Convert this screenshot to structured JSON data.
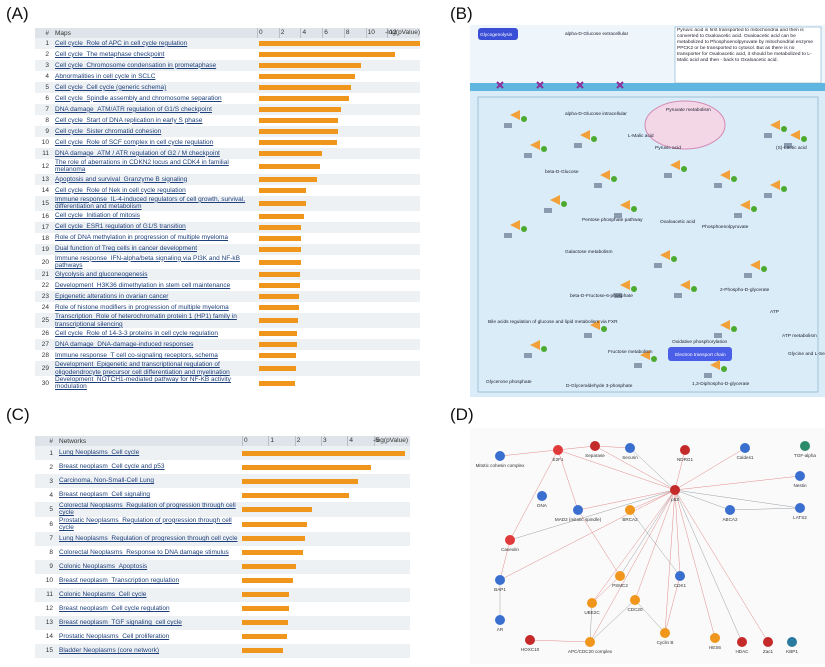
{
  "chart_data": [
    {
      "type": "bar",
      "orientation": "horizontal",
      "panel_label": "(A)",
      "column_headers": [
        "#",
        "Maps"
      ],
      "value_axis_label": "-log(pValue)",
      "row_numbers": [
        1,
        2,
        3,
        4,
        5,
        6,
        7,
        8,
        9,
        10,
        11,
        12,
        13,
        14,
        15,
        16,
        17,
        18,
        19,
        20,
        21,
        22,
        23,
        24,
        25,
        26,
        27,
        28,
        29,
        30
      ],
      "categories": [
        "Cell cycle_Role of APC in cell cycle regulation",
        "Cell cycle_The metaphase checkpoint",
        "Cell cycle_Chromosome condensation in prometaphase",
        "Abnormalities in cell cycle in SCLC",
        "Cell cycle_Cell cycle (generic schema)",
        "Cell cycle_Spindle assembly and chromosome separation",
        "DNA damage_ATM/ATR regulation of G1/S checkpoint",
        "Cell cycle_Start of DNA replication in early S phase",
        "Cell cycle_Sister chromatid cohesion",
        "Cell cycle_Role of SCF complex in cell cycle regulation",
        "DNA damage_ATM / ATR regulation of G2 / M checkpoint",
        "The role of aberrations in CDKN2 locus and CDK4 in familial melanoma",
        "Apoptosis and survival_Granzyme B signaling",
        "Cell cycle_Role of Nek in cell cycle regulation",
        "Immune response_IL-4-induced regulators of cell growth, survival, differentiation and metabolism",
        "Cell cycle_Initiation of mitosis",
        "Cell cycle_ESR1 regulation of G1/S transition",
        "Role of DNA methylation in progression of multiple myeloma",
        "Dual function of Treg cells in cancer development",
        "Immune response_IFN-alpha/beta signaling via PI3K and NF-kB pathways",
        "Glycolysis and gluconeogenesis",
        "Development_H3K36 dimethylation in stem cell maintenance",
        "Epigenetic alterations in ovarian cancer",
        "Role of histone modifiers in progression of multiple myeloma",
        "Transcription_Role of heterochromatin protein 1 (HP1) family in transcriptional silencing",
        "Cell cycle_Role of 14-3-3 proteins in cell cycle regulation",
        "DNA damage_DNA-damage-induced responses",
        "Immune response_T cell co-signaling receptors, schema",
        "Development_Epigenetic and transcriptional regulation of oligodendrocyte precursor cell differentiation and myelination",
        "Development_NOTCH1-mediated pathway for NF-KB activity modulation"
      ],
      "values": [
        14.8,
        12.5,
        9.4,
        8.8,
        8.5,
        8.3,
        7.5,
        7.3,
        7.3,
        7.2,
        5.8,
        5.6,
        5.3,
        4.3,
        4.3,
        4.1,
        3.9,
        3.9,
        3.9,
        3.9,
        3.8,
        3.8,
        3.7,
        3.7,
        3.6,
        3.5,
        3.5,
        3.4,
        3.4,
        3.3
      ],
      "color": "#f0961c",
      "xlim": [
        0,
        15
      ],
      "xticks": [
        0,
        2,
        4,
        6,
        8,
        10,
        12
      ]
    },
    {
      "type": "bar",
      "orientation": "horizontal",
      "panel_label": "(C)",
      "column_headers": [
        "#",
        "Networks"
      ],
      "value_axis_label": "-log(pValue)",
      "row_numbers": [
        1,
        2,
        3,
        4,
        5,
        6,
        7,
        8,
        9,
        10,
        11,
        12,
        13,
        14,
        15
      ],
      "categories": [
        "Lung Neoplasms_Cell cycle",
        "Breast neoplasm_Cell cycle and p53",
        "Carcinoma, Non-Small-Cell Lung",
        "Breast neoplasm_Cell signaling",
        "Colorectal Neoplasms_Regulation of progression through cell cycle",
        "Prostatic Neoplasms_Regulation of progression through cell cycle",
        "Lung Neoplasms_Regulation of progression through cell cycle",
        "Colorectal Neoplasms_Response to DNA damage stimulus",
        "Colonic Neoplasms_Apoptosis",
        "Breast neoplasm_Transcription regulation",
        "Colonic Neoplasms_Cell cycle",
        "Breast neoplasm_Cell cycle regulation",
        "Breast neoplasm_TGF signaling_cell cycle",
        "Prostatic Neoplasms_Cell proliferation",
        "Bladder Neoplasms (core network)"
      ],
      "values": [
        6.2,
        4.9,
        4.4,
        4.05,
        2.65,
        2.45,
        2.4,
        2.3,
        2.05,
        1.95,
        1.8,
        1.8,
        1.75,
        1.7,
        1.55
      ],
      "color": "#f0961c",
      "xlim": [
        0,
        6.3
      ],
      "xticks": [
        0,
        1,
        2,
        3,
        4,
        5
      ]
    }
  ],
  "pathway_map": {
    "panel_label": "(B)",
    "labels": [
      "Glycogenolysis",
      "alpha-D-Glucose extracellular",
      "Pyruvate metabolism",
      "alpha-D-Glucose intracellular",
      "beta-D-Glucose",
      "Pentose phosphate pathway",
      "Galactose metabolism",
      "Bile acids regulation of glucose and lipid metabolism via FXR",
      "beta-D-Fructose-6-phosphate",
      "Fructose metabolism",
      "Oxidative phosphorylation",
      "Electron transport chain",
      "Pyruvic acid",
      "L-Malic acid",
      "Oxaloacetic acid",
      "Phosphoenolpyruvate",
      "2-Phospho-D-glycerate",
      "ATP",
      "ATP metabolism",
      "Glycine and L-Serine metabolism",
      "1,3-Diphospho-D-glycerate",
      "Glycerone phosphate",
      "D-Glyceraldehyde 3-phosphate",
      "(S)-Lactic acid"
    ],
    "note": "Pyruvic acid is first transported to mitochondria and then is converted to Oxaloacetic acid. Oxaloacetic acid can be metabolized to Phosphoenolpyruvate by mitochondrial enzyme PPCK2 or be transported to cytosol. But as there is no transporter for Oxaloacetic acid, it should be metabolized to L-Malic acid and then - back to Oxaloacetic acid."
  },
  "network": {
    "panel_label": "(D)",
    "nodes": [
      "Mitotic cohesin complex",
      "E2F1",
      "Separase",
      "Securin",
      "NDRG1",
      "Caldes1",
      "TGF-alpha",
      "DNA",
      "Nestin",
      "LATS2",
      "MAD2 (mitotic spindle)",
      "BRCA2",
      "p53",
      "Cyclin B",
      "CDC20",
      "PSMC2",
      "CDK1",
      "UBE2C",
      "Caveolin",
      "BAP1",
      "AR",
      "HOXC10",
      "APC/CDC20 complex",
      "HES6",
      "HDAC",
      "Zac1",
      "KBP1",
      "ABCA2"
    ]
  }
}
